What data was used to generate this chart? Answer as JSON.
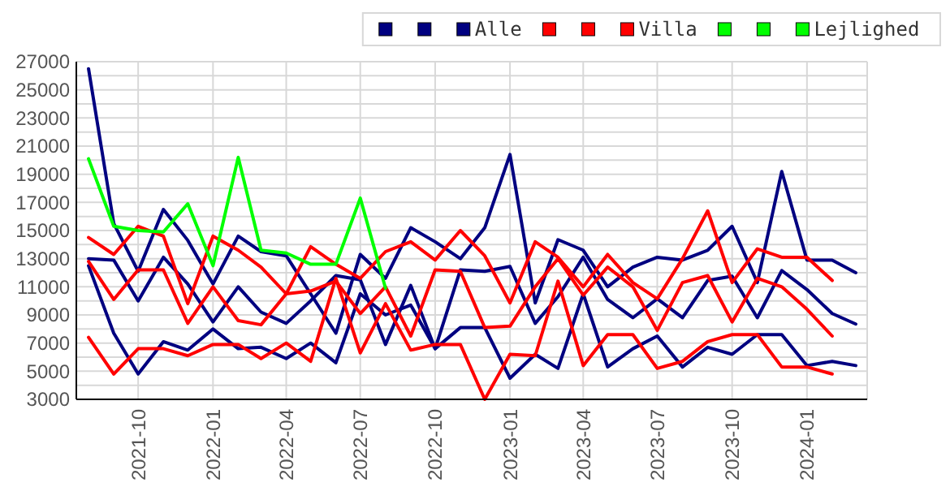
{
  "chart_data": {
    "type": "line",
    "x": [
      "2021-08",
      "2021-09",
      "2021-10",
      "2021-11",
      "2021-12",
      "2022-01",
      "2022-02",
      "2022-03",
      "2022-04",
      "2022-05",
      "2022-06",
      "2022-07",
      "2022-08",
      "2022-09",
      "2022-10",
      "2022-11",
      "2022-12",
      "2023-01",
      "2023-02",
      "2023-03",
      "2023-04",
      "2023-05",
      "2023-06",
      "2023-07",
      "2023-08",
      "2023-09",
      "2023-10",
      "2023-11",
      "2023-12",
      "2024-01",
      "2024-02",
      "2024-03"
    ],
    "series": [
      {
        "color": "#000080",
        "values": [
          26500,
          15500,
          12100,
          16500,
          14300,
          11200,
          14600,
          13500,
          13200,
          10500,
          7700,
          13300,
          11600,
          15200,
          14200,
          13000,
          15200,
          20400,
          9850,
          14350,
          13600,
          11000,
          12400,
          13100,
          12900,
          13600,
          15300,
          11300,
          19200,
          12900,
          12900,
          12000
        ]
      },
      {
        "color": "#000080",
        "values": [
          13000,
          12900,
          10000,
          13100,
          11200,
          8500,
          11000,
          9200,
          8400,
          10000,
          11800,
          11500,
          6900,
          11100,
          6600,
          12200,
          12100,
          12450,
          8400,
          10300,
          13100,
          10100,
          8800,
          10150,
          8800,
          11450,
          11750,
          8800,
          12150,
          10800,
          9100,
          8350
        ]
      },
      {
        "name": "Alle",
        "color": "#000080",
        "values": [
          12500,
          7700,
          4800,
          7100,
          6500,
          8000,
          6600,
          6700,
          5900,
          7000,
          5600,
          10500,
          9000,
          9700,
          6600,
          8100,
          8100,
          4500,
          6200,
          5200,
          10500,
          5300,
          6600,
          7500,
          5300,
          6700,
          6200,
          7600,
          7600,
          5400,
          5700,
          5400
        ]
      },
      {
        "color": "#ff0000",
        "values": [
          14500,
          13300,
          15300,
          14600,
          9800,
          14600,
          13600,
          12400,
          10500,
          13850,
          12600,
          11600,
          13500,
          14200,
          12900,
          15000,
          13200,
          9850,
          14200,
          13100,
          11000,
          13300,
          11300,
          10150,
          13000,
          16400,
          11300,
          13700,
          13100,
          13100,
          11450,
          null
        ]
      },
      {
        "color": "#ff0000",
        "values": [
          12800,
          10100,
          12200,
          12200,
          8400,
          11000,
          8600,
          8300,
          10500,
          10700,
          11400,
          9100,
          11000,
          7500,
          12200,
          12100,
          8100,
          8200,
          11000,
          13000,
          10400,
          12400,
          11000,
          7900,
          11300,
          11800,
          8500,
          11600,
          11000,
          9400,
          7500,
          null
        ]
      },
      {
        "name": "Villa",
        "color": "#ff0000",
        "values": [
          7400,
          4800,
          6600,
          6600,
          6100,
          6900,
          6900,
          5900,
          7000,
          5700,
          11600,
          6300,
          9800,
          6500,
          6900,
          6900,
          3000,
          6200,
          6100,
          11400,
          5400,
          7600,
          7600,
          5200,
          5700,
          7100,
          7600,
          7600,
          5300,
          5300,
          4800,
          null
        ]
      },
      {
        "color": "#00ff00",
        "values": [
          20100,
          15300,
          15000,
          14900,
          16900,
          12500,
          20200,
          13600,
          13400,
          12600,
          12600,
          17300,
          10900,
          null,
          null,
          null,
          null,
          null,
          null,
          null,
          null,
          null,
          null,
          null,
          null,
          null,
          null,
          null,
          null,
          null,
          null,
          null
        ]
      },
      {
        "color": "#00ff00",
        "values": [
          null,
          null,
          null,
          null,
          null,
          null,
          null,
          null,
          null,
          null,
          null,
          null,
          null,
          null,
          null,
          null,
          null,
          null,
          null,
          null,
          null,
          null,
          null,
          null,
          null,
          null,
          null,
          null,
          null,
          null,
          null,
          null
        ]
      },
      {
        "name": "Lejlighed",
        "color": "#00ff00",
        "values": [
          null,
          null,
          null,
          null,
          null,
          null,
          null,
          null,
          null,
          null,
          null,
          null,
          null,
          null,
          null,
          null,
          null,
          null,
          null,
          null,
          null,
          null,
          null,
          null,
          null,
          null,
          null,
          null,
          null,
          null,
          null,
          null
        ]
      }
    ],
    "xlim": [
      "2021-07-17",
      "2024-03-15"
    ],
    "xticks": [
      "2021-10",
      "2022-01",
      "2022-04",
      "2022-07",
      "2022-10",
      "2023-01",
      "2023-04",
      "2023-07",
      "2023-10",
      "2024-01"
    ],
    "ylim": [
      3000,
      27000
    ],
    "yticks": [
      3000,
      {
        "value": 4000,
        "label": null
      },
      5000,
      {
        "value": 6000,
        "label": null
      },
      7000,
      {
        "value": 8000,
        "label": null
      },
      9000,
      {
        "value": 10000,
        "label": null
      },
      11000,
      {
        "value": 12000,
        "label": null
      },
      13000,
      {
        "value": 14000,
        "label": null
      },
      15000,
      {
        "value": 16000,
        "label": null
      },
      17000,
      {
        "value": 18000,
        "label": null
      },
      19000,
      {
        "value": 20000,
        "label": null
      },
      21000,
      {
        "value": 22000,
        "label": null
      },
      23000,
      {
        "value": 24000,
        "label": null
      },
      25000,
      {
        "value": 26000,
        "label": null
      },
      27000
    ],
    "grid": true,
    "legend": "top right",
    "marker": "none",
    "line_style": "solid"
  }
}
